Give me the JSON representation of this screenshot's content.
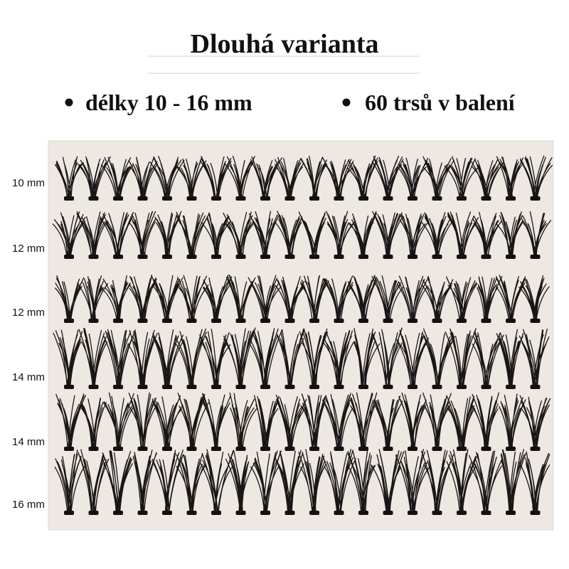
{
  "header": {
    "title": "Dlouhá varianta"
  },
  "bullets": [
    "délky 10 - 16 mm",
    "60 trsů v balení"
  ],
  "rows": [
    {
      "label": "10 mm"
    },
    {
      "label": "12 mm"
    },
    {
      "label": "12 mm"
    },
    {
      "label": "14 mm"
    },
    {
      "label": "14 mm"
    },
    {
      "label": "16 mm"
    }
  ]
}
